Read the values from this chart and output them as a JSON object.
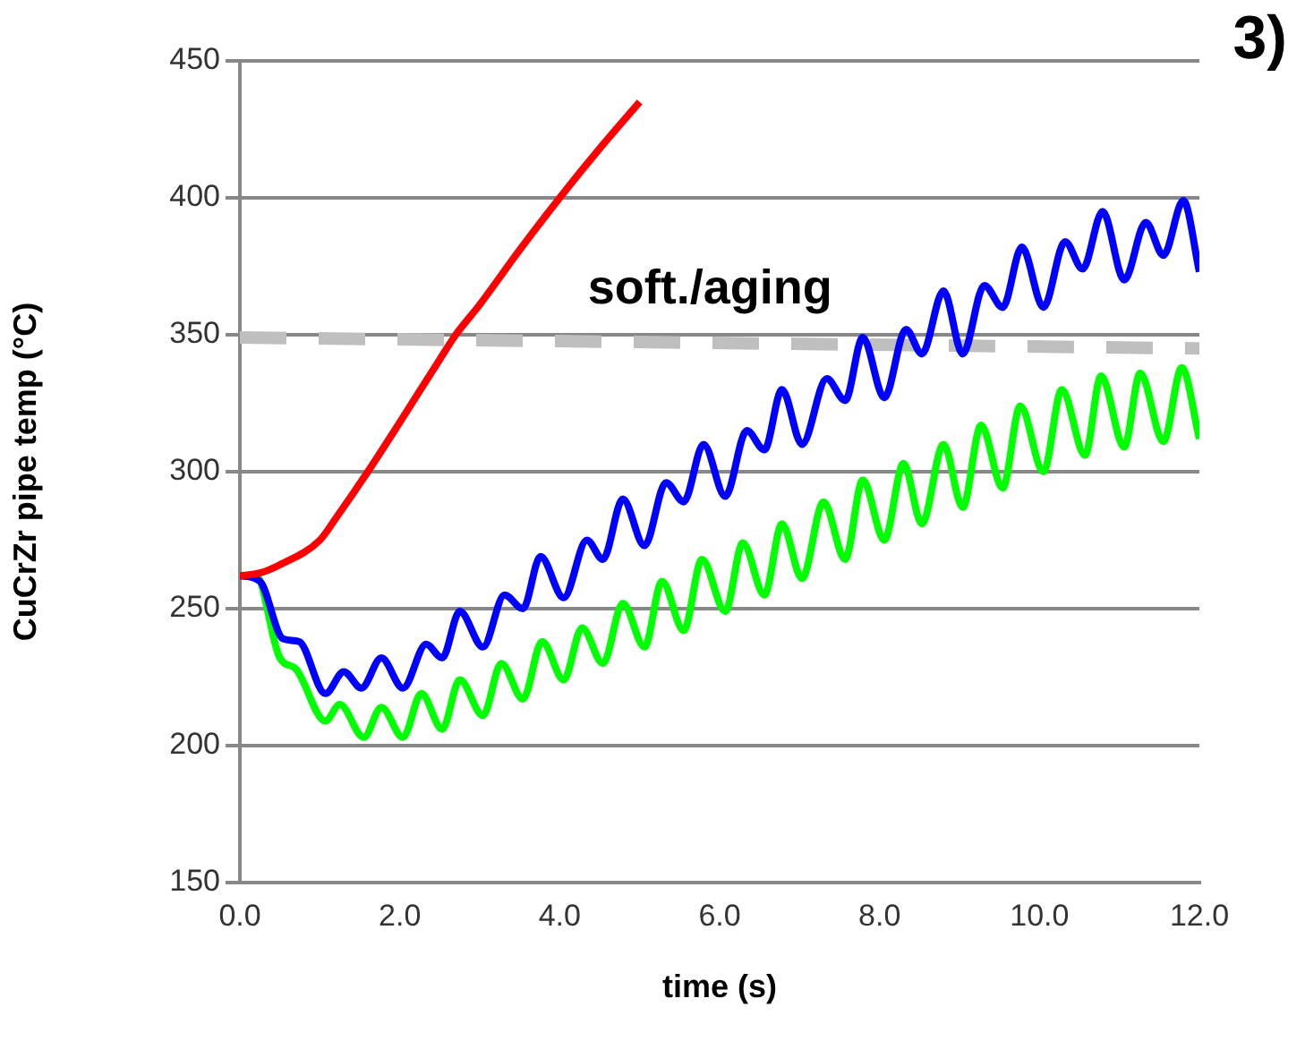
{
  "chart_data": {
    "type": "line",
    "xlabel": "time (s)",
    "ylabel": "CuCrZr pipe temp (°C)",
    "xlim": [
      0,
      12
    ],
    "xticks": [
      {
        "value": 0,
        "label": "0.0"
      },
      {
        "value": 2,
        "label": "2.0"
      },
      {
        "value": 4,
        "label": "4.0"
      },
      {
        "value": 6,
        "label": "6.0"
      },
      {
        "value": 8,
        "label": "8.0"
      },
      {
        "value": 10,
        "label": "10.0"
      },
      {
        "value": 12,
        "label": "12.0"
      }
    ],
    "ylim": [
      150,
      450
    ],
    "yticks": [
      150,
      200,
      250,
      300,
      350,
      400,
      450
    ],
    "grid": "y",
    "marker": "none",
    "series": [
      {
        "color": "#ff0000",
        "x": [
          0,
          0.25,
          0.5,
          1,
          1.2,
          1.6,
          2,
          2.5,
          2.7,
          3,
          3.5,
          4,
          4.5,
          5
        ],
        "values": [
          262,
          263,
          266,
          275,
          283,
          300,
          318,
          341,
          350,
          361,
          381,
          400,
          418,
          435
        ]
      },
      {
        "color": "#0000ff",
        "x": [
          0,
          0.25,
          0.54,
          0.74,
          1.07,
          1.3,
          1.52,
          1.77,
          2.04,
          2.33,
          2.53,
          2.75,
          3.04,
          3.31,
          3.54,
          3.76,
          4.05,
          4.34,
          4.54,
          4.79,
          5.06,
          5.33,
          5.55,
          5.8,
          6.07,
          6.34,
          6.56,
          6.78,
          7.03,
          7.34,
          7.57,
          7.79,
          8.06,
          8.33,
          8.53,
          8.8,
          9.04,
          9.31,
          9.54,
          9.78,
          10.05,
          10.32,
          10.54,
          10.79,
          11.06,
          11.33,
          11.55,
          11.8,
          12
        ],
        "values": [
          262,
          260,
          239,
          238,
          219,
          227,
          221,
          232,
          221,
          237,
          232,
          249,
          236,
          255,
          250,
          269,
          254,
          275,
          268,
          290,
          273,
          296,
          289,
          310,
          291,
          315,
          308,
          330,
          310,
          334,
          326,
          349,
          327,
          352,
          343,
          366,
          343,
          368,
          360,
          382,
          360,
          384,
          374,
          395,
          370,
          391,
          379,
          399,
          373
        ]
      },
      {
        "color": "#00ff00",
        "x": [
          0,
          0.2,
          0.5,
          0.7,
          1.07,
          1.25,
          1.55,
          1.77,
          2.04,
          2.27,
          2.53,
          2.75,
          3.04,
          3.27,
          3.54,
          3.78,
          4.05,
          4.28,
          4.54,
          4.79,
          5.06,
          5.28,
          5.55,
          5.78,
          6.07,
          6.29,
          6.56,
          6.78,
          7.03,
          7.3,
          7.57,
          7.79,
          8.06,
          8.3,
          8.53,
          8.8,
          9.04,
          9.27,
          9.54,
          9.76,
          10.05,
          10.28,
          10.57,
          10.77,
          11.06,
          11.26,
          11.55,
          11.78,
          12
        ],
        "values": [
          262,
          262,
          232,
          228,
          209,
          215,
          203,
          214,
          203,
          219,
          206,
          224,
          211,
          230,
          217,
          238,
          224,
          243,
          230,
          252,
          236,
          260,
          242,
          268,
          249,
          274,
          255,
          281,
          261,
          289,
          268,
          297,
          275,
          303,
          281,
          310,
          287,
          317,
          294,
          324,
          300,
          330,
          306,
          335,
          309,
          336,
          311,
          338,
          312
        ]
      },
      {
        "color": "#bfbfbf",
        "line_style": "dashed",
        "x": [
          0,
          12
        ],
        "values": [
          349,
          345
        ]
      }
    ],
    "annotations": [
      "soft./aging",
      "3)"
    ]
  }
}
